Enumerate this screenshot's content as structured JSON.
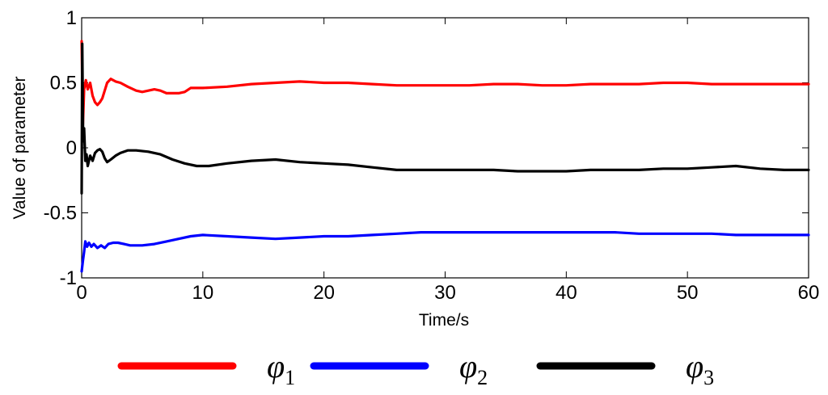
{
  "chart_data": {
    "type": "line",
    "xlabel": "Time/s",
    "ylabel": "Value of parameter",
    "xlim": [
      0,
      60
    ],
    "ylim": [
      -1,
      1
    ],
    "xticks": [
      "0",
      "10",
      "20",
      "30",
      "40",
      "50",
      "60"
    ],
    "yticks": [
      "1",
      "0.5",
      "0",
      "-0.5",
      "-1"
    ],
    "grid": false,
    "legend_position": "bottom",
    "series": [
      {
        "name": "φ",
        "subscript": "1",
        "color": "#ff0000",
        "points": [
          [
            0,
            0.82
          ],
          [
            0.1,
            0.18
          ],
          [
            0.2,
            0.45
          ],
          [
            0.35,
            0.52
          ],
          [
            0.5,
            0.45
          ],
          [
            0.7,
            0.5
          ],
          [
            0.9,
            0.4
          ],
          [
            1.1,
            0.35
          ],
          [
            1.3,
            0.33
          ],
          [
            1.5,
            0.35
          ],
          [
            1.7,
            0.38
          ],
          [
            1.9,
            0.44
          ],
          [
            2.1,
            0.5
          ],
          [
            2.4,
            0.53
          ],
          [
            2.8,
            0.51
          ],
          [
            3.2,
            0.5
          ],
          [
            3.8,
            0.47
          ],
          [
            4.5,
            0.44
          ],
          [
            5.0,
            0.43
          ],
          [
            5.5,
            0.44
          ],
          [
            6.0,
            0.45
          ],
          [
            6.5,
            0.44
          ],
          [
            7.0,
            0.42
          ],
          [
            7.5,
            0.42
          ],
          [
            8.0,
            0.42
          ],
          [
            8.5,
            0.43
          ],
          [
            9.0,
            0.46
          ],
          [
            10,
            0.46
          ],
          [
            12,
            0.47
          ],
          [
            14,
            0.49
          ],
          [
            16,
            0.5
          ],
          [
            18,
            0.51
          ],
          [
            20,
            0.5
          ],
          [
            22,
            0.5
          ],
          [
            24,
            0.49
          ],
          [
            26,
            0.48
          ],
          [
            28,
            0.48
          ],
          [
            30,
            0.48
          ],
          [
            32,
            0.48
          ],
          [
            34,
            0.49
          ],
          [
            36,
            0.49
          ],
          [
            38,
            0.48
          ],
          [
            40,
            0.48
          ],
          [
            42,
            0.49
          ],
          [
            44,
            0.49
          ],
          [
            46,
            0.49
          ],
          [
            48,
            0.5
          ],
          [
            50,
            0.5
          ],
          [
            52,
            0.49
          ],
          [
            54,
            0.49
          ],
          [
            56,
            0.49
          ],
          [
            58,
            0.49
          ],
          [
            60,
            0.49
          ]
        ]
      },
      {
        "name": "φ",
        "subscript": "2",
        "color": "#0000ff",
        "points": [
          [
            0,
            -0.95
          ],
          [
            0.1,
            -0.87
          ],
          [
            0.2,
            -0.8
          ],
          [
            0.3,
            -0.72
          ],
          [
            0.45,
            -0.76
          ],
          [
            0.6,
            -0.73
          ],
          [
            0.8,
            -0.76
          ],
          [
            1.0,
            -0.74
          ],
          [
            1.3,
            -0.77
          ],
          [
            1.6,
            -0.75
          ],
          [
            1.9,
            -0.77
          ],
          [
            2.2,
            -0.74
          ],
          [
            2.6,
            -0.73
          ],
          [
            3.0,
            -0.73
          ],
          [
            3.5,
            -0.74
          ],
          [
            4.0,
            -0.75
          ],
          [
            5.0,
            -0.75
          ],
          [
            6.0,
            -0.74
          ],
          [
            7.0,
            -0.72
          ],
          [
            8.0,
            -0.7
          ],
          [
            9.0,
            -0.68
          ],
          [
            10,
            -0.67
          ],
          [
            12,
            -0.68
          ],
          [
            14,
            -0.69
          ],
          [
            16,
            -0.7
          ],
          [
            18,
            -0.69
          ],
          [
            20,
            -0.68
          ],
          [
            22,
            -0.68
          ],
          [
            24,
            -0.67
          ],
          [
            26,
            -0.66
          ],
          [
            28,
            -0.65
          ],
          [
            30,
            -0.65
          ],
          [
            32,
            -0.65
          ],
          [
            34,
            -0.65
          ],
          [
            36,
            -0.65
          ],
          [
            38,
            -0.65
          ],
          [
            40,
            -0.65
          ],
          [
            42,
            -0.65
          ],
          [
            44,
            -0.65
          ],
          [
            46,
            -0.66
          ],
          [
            48,
            -0.66
          ],
          [
            50,
            -0.66
          ],
          [
            52,
            -0.66
          ],
          [
            54,
            -0.67
          ],
          [
            56,
            -0.67
          ],
          [
            58,
            -0.67
          ],
          [
            60,
            -0.67
          ]
        ]
      },
      {
        "name": "φ",
        "subscript": "3",
        "color": "#000000",
        "points": [
          [
            0,
            -0.35
          ],
          [
            0.05,
            0.8
          ],
          [
            0.12,
            0.05
          ],
          [
            0.2,
            0.15
          ],
          [
            0.3,
            -0.1
          ],
          [
            0.4,
            -0.05
          ],
          [
            0.5,
            -0.14
          ],
          [
            0.7,
            -0.06
          ],
          [
            0.9,
            -0.1
          ],
          [
            1.1,
            -0.04
          ],
          [
            1.3,
            -0.02
          ],
          [
            1.5,
            -0.01
          ],
          [
            1.7,
            -0.03
          ],
          [
            1.9,
            -0.08
          ],
          [
            2.1,
            -0.11
          ],
          [
            2.4,
            -0.09
          ],
          [
            2.8,
            -0.06
          ],
          [
            3.2,
            -0.04
          ],
          [
            3.8,
            -0.02
          ],
          [
            4.5,
            -0.02
          ],
          [
            5.5,
            -0.03
          ],
          [
            6.5,
            -0.05
          ],
          [
            7.5,
            -0.09
          ],
          [
            8.5,
            -0.12
          ],
          [
            9.5,
            -0.14
          ],
          [
            10.5,
            -0.14
          ],
          [
            12,
            -0.12
          ],
          [
            14,
            -0.1
          ],
          [
            16,
            -0.09
          ],
          [
            18,
            -0.11
          ],
          [
            20,
            -0.12
          ],
          [
            22,
            -0.13
          ],
          [
            24,
            -0.15
          ],
          [
            26,
            -0.17
          ],
          [
            28,
            -0.17
          ],
          [
            30,
            -0.17
          ],
          [
            32,
            -0.17
          ],
          [
            34,
            -0.17
          ],
          [
            36,
            -0.18
          ],
          [
            38,
            -0.18
          ],
          [
            40,
            -0.18
          ],
          [
            42,
            -0.17
          ],
          [
            44,
            -0.17
          ],
          [
            46,
            -0.17
          ],
          [
            48,
            -0.16
          ],
          [
            50,
            -0.16
          ],
          [
            52,
            -0.15
          ],
          [
            54,
            -0.14
          ],
          [
            56,
            -0.16
          ],
          [
            58,
            -0.17
          ],
          [
            60,
            -0.17
          ]
        ]
      }
    ]
  }
}
